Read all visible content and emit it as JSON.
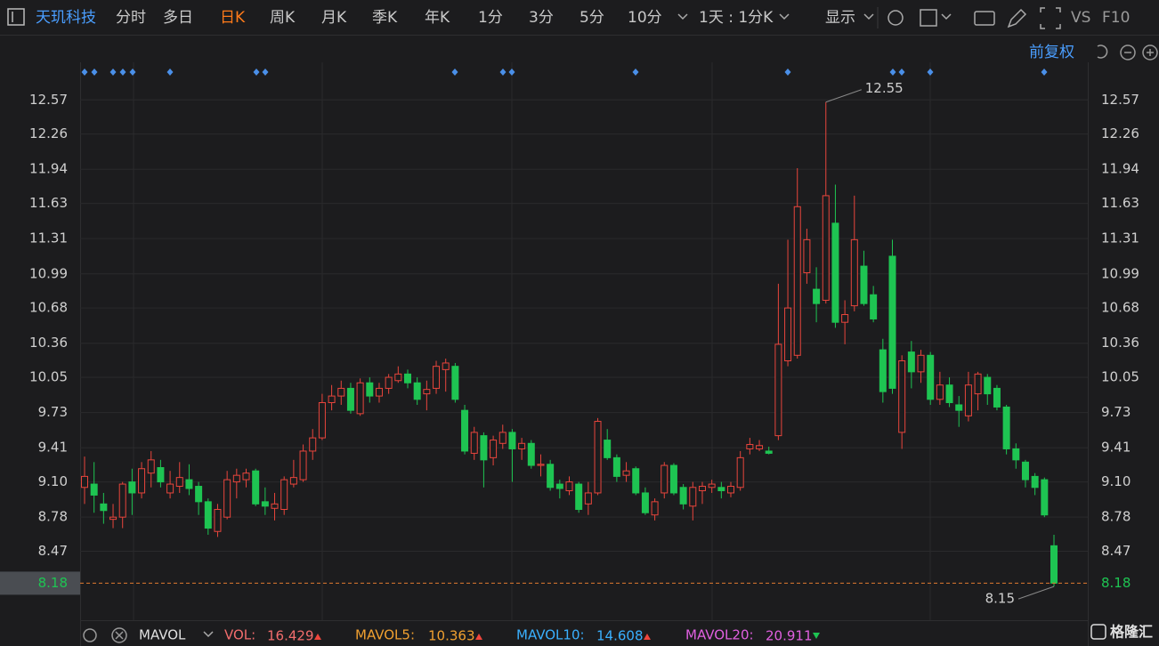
{
  "toolbar": {
    "title": "天玑科技",
    "periods": [
      "分时",
      "多日",
      "日K",
      "周K",
      "月K",
      "季K",
      "年K",
      "1分",
      "3分",
      "5分",
      "10分"
    ],
    "period_select": "1天 : 1分K",
    "display": "显示",
    "vs": "VS",
    "f10": "F10"
  },
  "subbar": {
    "adjust": "前复权"
  },
  "indicators": {
    "name": "MAVOL",
    "vol_label": "VOL:",
    "vol": 16.429,
    "mavol5_label": "MAVOL5:",
    "mavol5": 10.363,
    "mavol10_label": "MAVOL10:",
    "mavol10": 14.608,
    "mavol20_label": "MAVOL20:",
    "mavol20": 20.911
  },
  "watermark": "格隆汇",
  "chart_data": {
    "type": "candlestick",
    "up_color": "#e8453c",
    "down_color": "#1ec452",
    "grid": true,
    "ylim": [
      7.86,
      12.75
    ],
    "yticks": [
      12.57,
      12.26,
      11.94,
      11.63,
      11.31,
      10.99,
      10.68,
      10.36,
      10.05,
      9.73,
      9.41,
      {
        "value": 9.1,
        "label": "9.10"
      },
      8.78,
      8.47
    ],
    "open": [
      9.05,
      9.08,
      8.9,
      8.76,
      8.78,
      9.1,
      9.0,
      9.18,
      9.23,
      9.0,
      9.06,
      9.12,
      9.06,
      8.92,
      8.65,
      8.78,
      9.1,
      9.12,
      9.2,
      8.92,
      8.86,
      8.85,
      9.08,
      9.12,
      9.38,
      9.5,
      9.82,
      9.88,
      9.95,
      9.72,
      10.0,
      9.88,
      9.95,
      10.02,
      10.08,
      10.0,
      9.9,
      9.95,
      10.12,
      10.15,
      9.75,
      9.36,
      9.52,
      9.32,
      9.45,
      9.55,
      9.4,
      9.45,
      9.25,
      9.26,
      9.08,
      9.02,
      9.08,
      8.9,
      9.0,
      9.48,
      9.32,
      9.16,
      9.22,
      9.0,
      8.8,
      9.0,
      9.25,
      9.05,
      8.88,
      9.02,
      9.05,
      9.05,
      9.0,
      9.05,
      9.4,
      9.4,
      9.38,
      9.52,
      10.2,
      10.25,
      11.0,
      10.85,
      10.75,
      11.45,
      10.55,
      10.7,
      11.06,
      10.8,
      10.3,
      11.15,
      9.55,
      10.28,
      10.1,
      10.25,
      9.85,
      9.98,
      9.8,
      9.7,
      9.9,
      10.05,
      9.95,
      9.78,
      9.4,
      9.28,
      9.15,
      9.12,
      8.52
    ],
    "high": [
      9.33,
      9.28,
      9.0,
      8.9,
      9.1,
      9.22,
      9.28,
      9.38,
      9.3,
      9.2,
      9.28,
      9.26,
      9.1,
      8.95,
      8.9,
      9.2,
      9.22,
      9.22,
      9.22,
      9.05,
      9.0,
      9.15,
      9.3,
      9.44,
      9.58,
      9.9,
      9.98,
      10.02,
      10.0,
      10.04,
      10.05,
      10.0,
      10.08,
      10.15,
      10.12,
      10.05,
      10.02,
      10.2,
      10.22,
      10.18,
      9.8,
      9.6,
      9.55,
      9.52,
      9.62,
      9.58,
      9.5,
      9.48,
      9.35,
      9.3,
      9.12,
      9.15,
      9.1,
      9.1,
      9.68,
      9.58,
      9.35,
      9.28,
      9.24,
      9.05,
      8.95,
      9.28,
      9.27,
      9.08,
      9.1,
      9.1,
      9.12,
      9.1,
      9.1,
      9.38,
      9.5,
      9.48,
      9.42,
      10.9,
      11.3,
      11.95,
      11.4,
      11.05,
      12.55,
      11.8,
      10.75,
      11.7,
      11.2,
      10.88,
      10.4,
      11.3,
      10.25,
      10.38,
      10.3,
      10.28,
      10.1,
      10.05,
      9.88,
      10.1,
      10.1,
      10.08,
      9.98,
      9.8,
      9.45,
      9.3,
      9.18,
      9.14,
      8.62
    ],
    "low": [
      8.9,
      8.82,
      8.72,
      8.68,
      8.68,
      8.8,
      8.95,
      9.05,
      9.05,
      8.95,
      9.0,
      8.98,
      8.8,
      8.62,
      8.6,
      8.76,
      8.95,
      9.05,
      8.88,
      8.8,
      8.75,
      8.8,
      9.05,
      9.1,
      9.3,
      9.48,
      9.75,
      9.8,
      9.72,
      9.7,
      9.82,
      9.82,
      9.9,
      10.0,
      9.95,
      9.8,
      9.75,
      9.9,
      9.92,
      9.82,
      9.35,
      9.3,
      9.05,
      9.25,
      9.4,
      9.1,
      9.3,
      9.22,
      9.15,
      9.02,
      8.95,
      8.98,
      8.82,
      8.8,
      8.98,
      9.3,
      9.1,
      9.1,
      8.98,
      8.8,
      8.75,
      8.95,
      8.98,
      8.85,
      8.75,
      8.9,
      9.0,
      8.95,
      8.96,
      9.02,
      9.35,
      9.38,
      9.35,
      9.48,
      10.15,
      10.22,
      10.9,
      10.55,
      10.72,
      10.5,
      10.35,
      10.65,
      10.7,
      10.55,
      9.82,
      9.9,
      9.4,
      9.95,
      10.0,
      9.8,
      9.8,
      9.78,
      9.6,
      9.65,
      9.75,
      9.8,
      9.75,
      9.35,
      9.22,
      9.05,
      8.98,
      8.78,
      8.15
    ],
    "close": [
      9.15,
      8.98,
      8.84,
      8.78,
      9.08,
      9.0,
      9.22,
      9.3,
      9.1,
      9.08,
      9.14,
      9.04,
      8.92,
      8.68,
      8.85,
      9.12,
      9.16,
      9.18,
      8.9,
      8.88,
      8.9,
      9.12,
      9.14,
      9.38,
      9.5,
      9.82,
      9.88,
      9.95,
      9.75,
      10.0,
      9.88,
      9.95,
      10.05,
      10.08,
      10.0,
      9.85,
      9.94,
      10.15,
      10.18,
      9.85,
      9.38,
      9.55,
      9.3,
      9.48,
      9.55,
      9.4,
      9.45,
      9.25,
      9.26,
      9.05,
      9.04,
      9.1,
      8.85,
      9.0,
      9.65,
      9.32,
      9.15,
      9.2,
      9.0,
      8.82,
      8.92,
      9.25,
      9.0,
      8.9,
      9.05,
      9.06,
      9.08,
      9.02,
      9.06,
      9.32,
      9.44,
      9.43,
      9.36,
      10.35,
      10.68,
      11.6,
      11.3,
      10.72,
      11.7,
      10.55,
      10.62,
      11.3,
      10.72,
      10.58,
      9.92,
      9.95,
      10.2,
      10.1,
      10.25,
      9.85,
      9.98,
      9.82,
      9.75,
      9.98,
      10.08,
      9.9,
      9.78,
      9.4,
      9.3,
      9.12,
      9.05,
      8.8,
      8.18
    ]
  }
}
